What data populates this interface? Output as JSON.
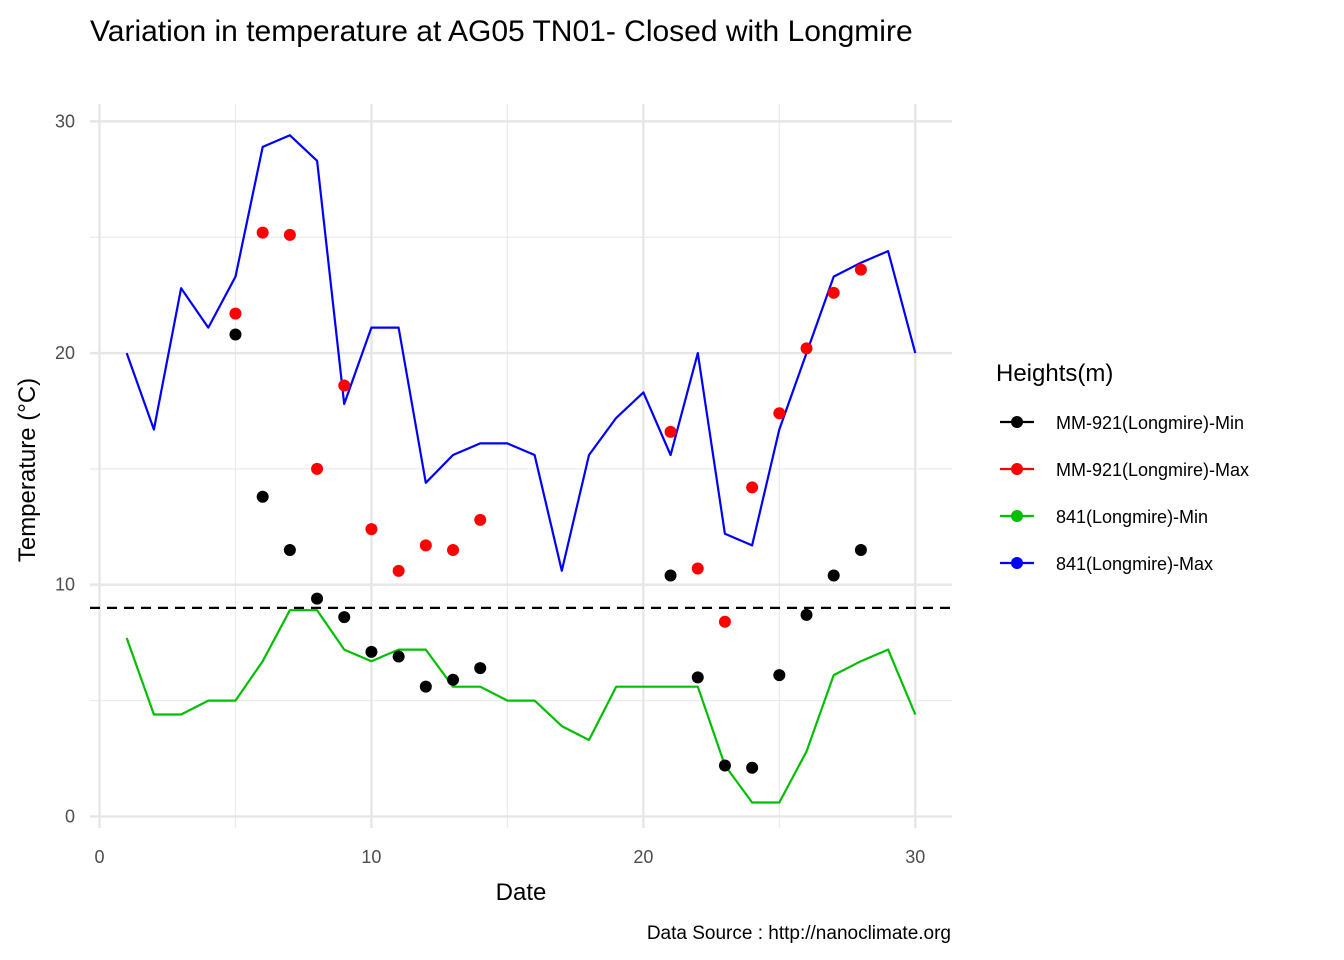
{
  "chart_data": {
    "type": "line",
    "title": "Variation in temperature at AG05 TN01- Closed with Longmire",
    "xlabel": "Date",
    "ylabel": "Temperature (°C)",
    "caption": "Data Source : http://nanoclimate.org",
    "xlim": [
      0,
      30
    ],
    "ylim": [
      0,
      30
    ],
    "x_ticks": [
      0,
      10,
      20,
      30
    ],
    "y_ticks": [
      0,
      10,
      20,
      30
    ],
    "grid": true,
    "legend_title": "Heights(m)",
    "legend_position": "right",
    "reference_line": {
      "y": 9,
      "style": "dashed",
      "color": "#000000"
    },
    "series": [
      {
        "name": "MM-921(Longmire)-Min",
        "kind": "points",
        "color": "#000000",
        "x": [
          5,
          6,
          7,
          8,
          9,
          10,
          11,
          12,
          13,
          14,
          21,
          22,
          23,
          24,
          25,
          26,
          27,
          28
        ],
        "y": [
          20.8,
          13.8,
          11.5,
          9.4,
          8.6,
          7.1,
          6.9,
          5.6,
          5.9,
          6.4,
          10.4,
          6.0,
          2.2,
          2.1,
          6.1,
          8.7,
          10.4,
          11.5
        ]
      },
      {
        "name": "MM-921(Longmire)-Max",
        "kind": "points",
        "color": "#ff0000",
        "x": [
          5,
          6,
          7,
          8,
          9,
          10,
          11,
          12,
          13,
          14,
          21,
          22,
          23,
          24,
          25,
          26,
          27,
          28
        ],
        "y": [
          21.7,
          25.2,
          25.1,
          15.0,
          18.6,
          12.4,
          10.6,
          11.7,
          11.5,
          12.8,
          16.6,
          10.7,
          8.4,
          14.2,
          17.4,
          20.2,
          22.6,
          23.6
        ]
      },
      {
        "name": "841(Longmire)-Min",
        "kind": "line",
        "color": "#00bf00",
        "x": [
          1,
          2,
          3,
          4,
          5,
          6,
          7,
          8,
          9,
          10,
          11,
          12,
          13,
          14,
          15,
          16,
          17,
          18,
          19,
          20,
          21,
          22,
          23,
          24,
          25,
          26,
          27,
          28,
          29,
          30
        ],
        "y": [
          7.7,
          4.4,
          4.4,
          5.0,
          5.0,
          6.7,
          8.9,
          8.9,
          7.2,
          6.7,
          7.2,
          7.2,
          5.6,
          5.6,
          5.0,
          5.0,
          3.9,
          3.3,
          5.6,
          5.6,
          5.6,
          5.6,
          2.2,
          0.6,
          0.6,
          2.8,
          6.1,
          6.7,
          7.2,
          4.4
        ]
      },
      {
        "name": "841(Longmire)-Max",
        "kind": "line",
        "color": "#0000ff",
        "x": [
          1,
          2,
          3,
          4,
          5,
          6,
          7,
          8,
          9,
          10,
          11,
          12,
          13,
          14,
          15,
          16,
          17,
          18,
          19,
          20,
          21,
          22,
          23,
          24,
          25,
          26,
          27,
          28,
          29,
          30
        ],
        "y": [
          20.0,
          16.7,
          22.8,
          21.1,
          23.3,
          28.9,
          29.4,
          28.3,
          17.8,
          21.1,
          21.1,
          14.4,
          15.6,
          16.1,
          16.1,
          15.6,
          10.6,
          15.6,
          17.2,
          18.3,
          15.6,
          20.0,
          12.2,
          11.7,
          16.7,
          20.0,
          23.3,
          23.9,
          24.4,
          20.0
        ]
      }
    ]
  }
}
